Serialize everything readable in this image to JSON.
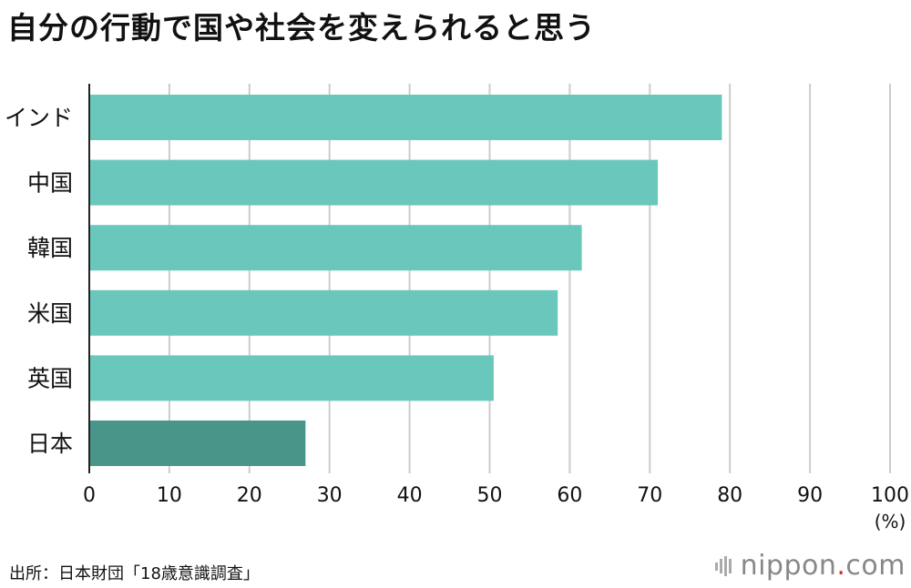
{
  "chart_data": {
    "type": "bar",
    "orientation": "horizontal",
    "title": "自分の行動で国や社会を変えられると思う",
    "categories": [
      "インド",
      "中国",
      "韓国",
      "米国",
      "英国",
      "日本"
    ],
    "values": [
      79,
      71,
      61.5,
      58.5,
      50.5,
      27
    ],
    "unit": "(%)",
    "xlim": [
      0,
      100
    ],
    "xticks": [
      "0",
      "10",
      "20",
      "30",
      "40",
      "50",
      "60",
      "70",
      "80",
      "90",
      "100"
    ],
    "grid": true,
    "colors": {
      "bar": "#6ac7bb",
      "highlight": "#4a958a",
      "grid": "#cccccc",
      "axis": "#222222"
    },
    "highlight_category": "日本"
  },
  "source": "出所：日本財団「18歳意識調査」",
  "logo": {
    "name": "nippon",
    "dot": ".",
    "suffix": "com",
    "icon": "nippon-logo-mark-icon"
  }
}
